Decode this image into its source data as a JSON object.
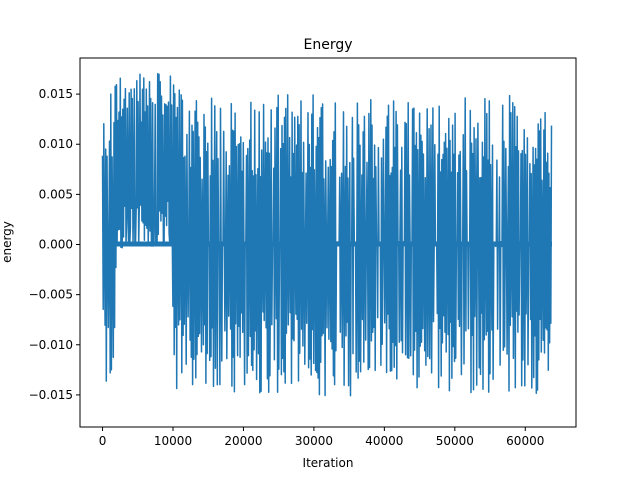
{
  "chart_data": {
    "type": "line",
    "title": "Energy",
    "xlabel": "Iteration",
    "ylabel": "energy",
    "xlim": [
      -3200,
      67200
    ],
    "ylim": [
      -0.0182,
      0.0186
    ],
    "x_ticks": [
      0,
      10000,
      20000,
      30000,
      40000,
      50000,
      60000
    ],
    "x_tick_labels": [
      "0",
      "10000",
      "20000",
      "30000",
      "40000",
      "50000",
      "60000"
    ],
    "y_ticks": [
      -0.015,
      -0.01,
      -0.005,
      0.0,
      0.005,
      0.01,
      0.015
    ],
    "y_tick_labels": [
      "−0.015",
      "−0.010",
      "−0.005",
      "0.000",
      "0.005",
      "0.010",
      "0.015"
    ],
    "grid": false,
    "legend": "none",
    "series_color": "#1f77b4",
    "series": [
      {
        "x": [
          0,
          500,
          1000,
          1500,
          2000,
          3000,
          4000,
          5000,
          6000,
          7000,
          8000,
          9000,
          9800,
          10000,
          11000,
          12000,
          13000,
          14000,
          15000,
          16000,
          17000,
          18000,
          19000,
          20000,
          22000,
          24000,
          26000,
          28000,
          30000,
          32000,
          34000,
          36000,
          38000,
          40000,
          42000,
          44000,
          46000,
          48000,
          50000,
          52000,
          54000,
          56000,
          58000,
          60000,
          62000,
          63800
        ],
        "upper": [
          0.0145,
          0.0152,
          0.016,
          0.0165,
          0.0167,
          0.017,
          0.017,
          0.017,
          0.017,
          0.0171,
          0.0171,
          0.0171,
          0.0171,
          0.016,
          0.0158,
          0.0152,
          0.015,
          0.0148,
          0.0145,
          0.015,
          0.014,
          0.0145,
          0.014,
          0.0145,
          0.015,
          0.0148,
          0.015,
          0.015,
          0.0152,
          0.0148,
          0.0145,
          0.015,
          0.0148,
          0.0145,
          0.015,
          0.0148,
          0.015,
          0.015,
          0.0148,
          0.015,
          0.015,
          0.015,
          0.015,
          0.015,
          0.0148,
          0.0128
        ],
        "lower": [
          -0.0145,
          -0.0152,
          -0.016,
          -0.0168,
          -0.0005,
          -0.0003,
          -0.0002,
          -0.0002,
          -0.0002,
          -0.0002,
          -0.0002,
          -0.0002,
          -0.0002,
          -0.015,
          -0.0152,
          -0.0148,
          -0.015,
          -0.0148,
          -0.015,
          -0.0145,
          -0.015,
          -0.0148,
          -0.015,
          -0.0145,
          -0.0148,
          -0.015,
          -0.0148,
          -0.015,
          -0.015,
          -0.0155,
          -0.0152,
          -0.015,
          -0.015,
          -0.0148,
          -0.015,
          -0.015,
          -0.0148,
          -0.015,
          -0.015,
          -0.0148,
          -0.015,
          -0.015,
          -0.015,
          -0.015,
          -0.0148,
          -0.014
        ],
        "baseline_band": [
          -0.0002,
          0.0003
        ]
      }
    ]
  }
}
